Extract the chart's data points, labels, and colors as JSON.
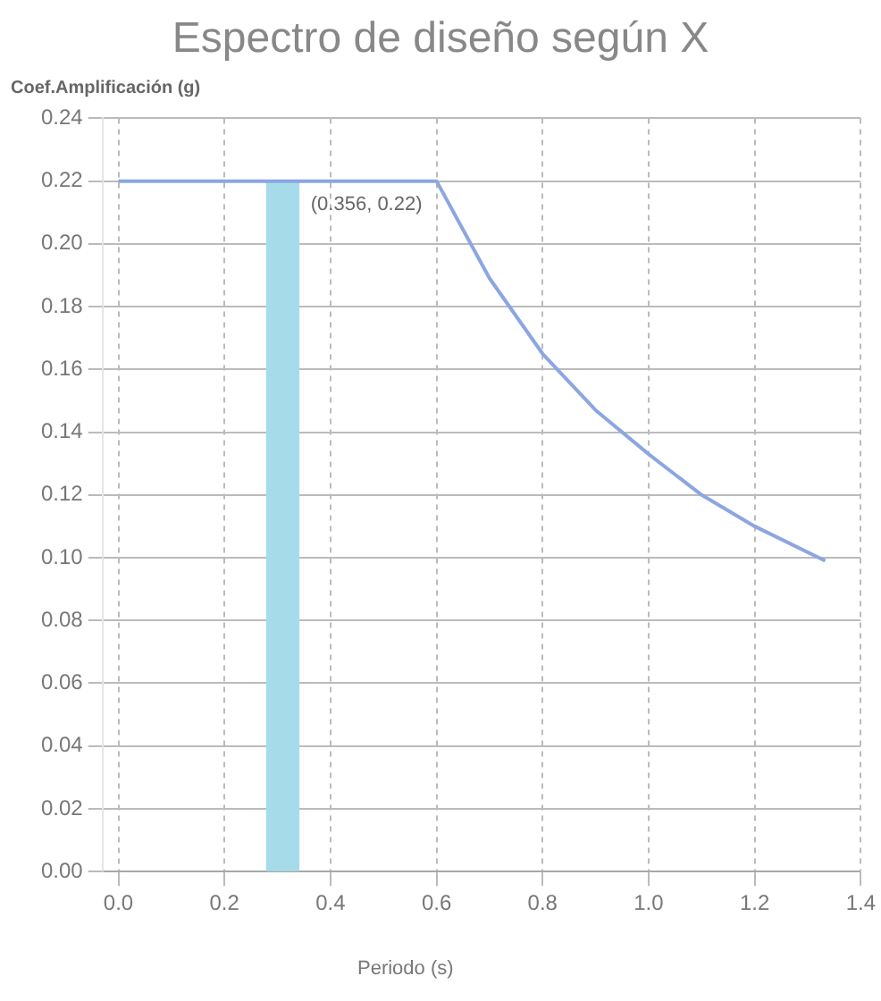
{
  "chart_data": {
    "type": "line",
    "title": "Espectro de diseño según X",
    "xlabel": "Periodo (s)",
    "ylabel": "Coef.Amplificación (g)",
    "series": [
      {
        "type": "bar",
        "color": "#a6dcea",
        "x": [
          0.31
        ],
        "values": [
          0.22
        ]
      },
      {
        "color": "#8ca6e2",
        "x": [
          0,
          0.6,
          0.7,
          0.8,
          0.9,
          1.0,
          1.1,
          1.2,
          1.333
        ],
        "values": [
          0.22,
          0.22,
          0.189,
          0.165,
          0.147,
          0.133,
          0.12,
          0.11,
          0.099
        ]
      }
    ],
    "annotations": [
      {
        "text": "(0.356, 0.22)",
        "x": 0.356,
        "y": 0.22
      }
    ],
    "xlim": [
      -0.03,
      1.4
    ],
    "xticks": [
      {
        "value": 0,
        "label": "0.0"
      },
      {
        "value": 0.2,
        "label": "0.2"
      },
      {
        "value": 0.4,
        "label": "0.4"
      },
      {
        "value": 0.6,
        "label": "0.6"
      },
      {
        "value": 0.8,
        "label": "0.8"
      },
      {
        "value": 1.0,
        "label": "1.0"
      },
      {
        "value": 1.2,
        "label": "1.2"
      },
      {
        "value": 1.4,
        "label": "1.4"
      }
    ],
    "ylim": [
      0,
      0.24
    ],
    "yticks": [
      {
        "value": 0,
        "label": "0.00"
      },
      {
        "value": 0.02,
        "label": "0.02"
      },
      {
        "value": 0.04,
        "label": "0.04"
      },
      {
        "value": 0.06,
        "label": "0.06"
      },
      {
        "value": 0.08,
        "label": "0.08"
      },
      {
        "value": 0.1,
        "label": "0.10"
      },
      {
        "value": 0.12,
        "label": "0.12"
      },
      {
        "value": 0.14,
        "label": "0.14"
      },
      {
        "value": 0.16,
        "label": "0.16"
      },
      {
        "value": 0.18,
        "label": "0.18"
      },
      {
        "value": 0.2,
        "label": "0.20"
      },
      {
        "value": 0.22,
        "label": "0.22"
      },
      {
        "value": 0.24,
        "label": "0.24"
      }
    ],
    "grid": true,
    "legend": false,
    "marker": "none",
    "line_style": "solid"
  }
}
